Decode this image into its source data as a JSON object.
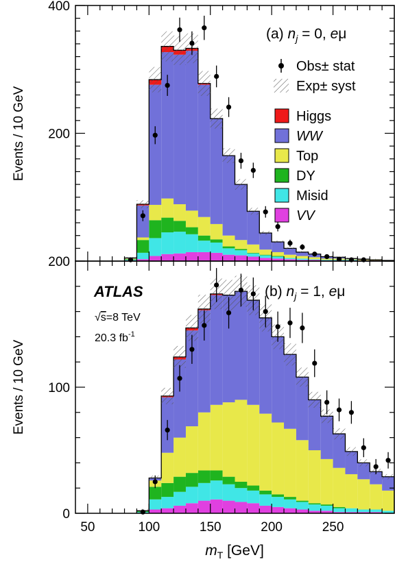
{
  "chart_data": [
    {
      "type": "histogram-stacked",
      "panel_label": "(a) ",
      "label_n": "n",
      "label_j": "j",
      "label_mid": " = 0, ",
      "label_e": "e",
      "label_mu": "μ",
      "ylabel": "Events / 10 GeV",
      "xlim": [
        40,
        300
      ],
      "ylim": [
        0,
        400
      ],
      "y_ticks": [
        {
          "value": 200,
          "label": "200"
        },
        {
          "value": 400,
          "label": "400"
        }
      ],
      "bins": [
        80,
        90,
        100,
        110,
        120,
        130,
        140,
        150,
        160,
        170,
        180,
        190,
        200,
        210,
        220,
        230,
        240,
        250,
        260,
        270,
        280,
        290
      ],
      "stack_order": [
        "VV",
        "Misid",
        "DY",
        "Top",
        "WW",
        "Higgs"
      ],
      "series": [
        {
          "name": "VV",
          "color": "#e040e0",
          "values": [
            1,
            3,
            8,
            11,
            12,
            14,
            14,
            13,
            10,
            9,
            7,
            5,
            4,
            3,
            2,
            2,
            1,
            1,
            1,
            1,
            1,
            1
          ]
        },
        {
          "name": "Misid",
          "color": "#40e6e6",
          "values": [
            1,
            10,
            28,
            34,
            34,
            28,
            18,
            16,
            10,
            8,
            5,
            4,
            3,
            2,
            2,
            1,
            1,
            1,
            1,
            0,
            0,
            0
          ]
        },
        {
          "name": "DY",
          "color": "#1fb41f",
          "values": [
            1,
            20,
            28,
            23,
            17,
            11,
            8,
            5,
            3,
            2,
            1,
            1,
            1,
            0,
            0,
            0,
            0,
            0,
            0,
            0,
            0,
            0
          ]
        },
        {
          "name": "Top",
          "color": "#e8e84a",
          "values": [
            1,
            4,
            24,
            30,
            26,
            26,
            29,
            24,
            17,
            14,
            13,
            8,
            6,
            5,
            4,
            3,
            2,
            2,
            1,
            1,
            1,
            0
          ]
        },
        {
          "name": "WW",
          "color": "#7171d9",
          "values": [
            1,
            50,
            188,
            229,
            234,
            250,
            207,
            165,
            125,
            87,
            52,
            26,
            16,
            10,
            6,
            5,
            3,
            2,
            1,
            1,
            0,
            0
          ]
        },
        {
          "name": "Higgs",
          "color": "#ef1a1a",
          "values": [
            0,
            2,
            8,
            9,
            7,
            4,
            2,
            0,
            0,
            0,
            0,
            0,
            0,
            0,
            0,
            0,
            0,
            0,
            0,
            0,
            0,
            0
          ]
        }
      ],
      "observed": {
        "x": [
          85,
          95,
          105,
          115,
          125,
          135,
          145,
          155,
          165,
          175,
          185,
          195,
          205,
          215,
          225,
          235,
          245,
          255,
          265,
          275
        ],
        "y": [
          2,
          71,
          197,
          275,
          362,
          341,
          365,
          289,
          241,
          157,
          142,
          77,
          54,
          28,
          22,
          11,
          7,
          3,
          2,
          2
        ],
        "err": [
          1.5,
          8.5,
          14,
          16.5,
          19,
          18.5,
          19,
          17,
          15.5,
          12.5,
          12,
          9,
          7.5,
          5.5,
          4.5,
          3.3,
          2.6,
          1.7,
          1.4,
          1.4
        ]
      },
      "legend": {
        "obs": "Obs± stat",
        "exp": "Exp± syst",
        "entries": [
          {
            "label": "Higgs",
            "color": "#ef1a1a",
            "italic": false
          },
          {
            "label": "WW",
            "color": "#7171d9",
            "italic": true
          },
          {
            "label": "Top",
            "color": "#e8e84a",
            "italic": false
          },
          {
            "label": "DY",
            "color": "#1fb41f",
            "italic": false
          },
          {
            "label": "Misid",
            "color": "#40e6e6",
            "italic": false
          },
          {
            "label": "VV",
            "color": "#e040e0",
            "italic": true
          }
        ]
      }
    },
    {
      "type": "histogram-stacked",
      "panel_label": "(b) ",
      "label_n": "n",
      "label_j": "j",
      "label_mid": " = 1, ",
      "label_e": "e",
      "label_mu": "μ",
      "ylabel": "Events / 10 GeV",
      "xlim": [
        40,
        300
      ],
      "ylim": [
        0,
        200
      ],
      "y_ticks": [
        {
          "value": 0,
          "label": "0"
        },
        {
          "value": 100,
          "label": "100"
        },
        {
          "value": 200,
          "label": "200"
        }
      ],
      "x_ticks": [
        {
          "value": 50,
          "label": "50"
        },
        {
          "value": 100,
          "label": "100"
        },
        {
          "value": 150,
          "label": "150"
        },
        {
          "value": 200,
          "label": "200"
        },
        {
          "value": 250,
          "label": "250"
        }
      ],
      "bins": [
        90,
        100,
        110,
        120,
        130,
        140,
        150,
        160,
        170,
        180,
        190,
        200,
        210,
        220,
        230,
        240,
        250,
        260,
        270,
        280,
        290
      ],
      "stack_order": [
        "VV",
        "Misid",
        "DY",
        "Top",
        "WW",
        "Higgs"
      ],
      "series": [
        {
          "name": "VV",
          "color": "#e040e0",
          "values": [
            0,
            3,
            4,
            6,
            8,
            10,
            11,
            10,
            9,
            8,
            6,
            5,
            4,
            3,
            2,
            2,
            1,
            1,
            1,
            1,
            0
          ]
        },
        {
          "name": "Misid",
          "color": "#40e6e6",
          "values": [
            1,
            8,
            9,
            11,
            13,
            14,
            15,
            13,
            11,
            10,
            9,
            8,
            7,
            6,
            5,
            4,
            3,
            3,
            2,
            2,
            2
          ]
        },
        {
          "name": "DY",
          "color": "#1fb41f",
          "values": [
            1,
            10,
            11,
            12,
            11,
            10,
            8,
            6,
            5,
            4,
            3,
            2,
            2,
            1,
            1,
            1,
            1,
            0,
            0,
            0,
            0
          ]
        },
        {
          "name": "Top",
          "color": "#e8e84a",
          "values": [
            0,
            5,
            24,
            31,
            37,
            46,
            52,
            59,
            65,
            64,
            61,
            57,
            54,
            48,
            42,
            36,
            31,
            27,
            24,
            20,
            16
          ]
        },
        {
          "name": "WW",
          "color": "#7171d9",
          "values": [
            0,
            2,
            44,
            62,
            76,
            81,
            87,
            85,
            86,
            83,
            76,
            68,
            59,
            50,
            40,
            34,
            27,
            18,
            13,
            10,
            11
          ]
        },
        {
          "name": "Higgs",
          "color": "#ef1a1a",
          "values": [
            0,
            0,
            1,
            2,
            2,
            1,
            1,
            0,
            0,
            0,
            0,
            0,
            0,
            0,
            0,
            0,
            0,
            0,
            0,
            0,
            0
          ]
        }
      ],
      "observed": {
        "x": [
          95,
          105,
          115,
          125,
          135,
          145,
          155,
          165,
          175,
          185,
          195,
          205,
          215,
          225,
          235,
          245,
          255,
          265,
          275,
          285,
          295
        ],
        "y": [
          1,
          25,
          66,
          107,
          130,
          149,
          181,
          159,
          177,
          174,
          160,
          148,
          151,
          147,
          119,
          88,
          82,
          80,
          52,
          37,
          42
        ],
        "err": [
          1,
          5,
          8,
          10.5,
          11.5,
          12,
          13.5,
          12.5,
          13,
          13,
          12.5,
          12,
          12,
          12,
          11,
          9.5,
          9,
          9,
          7.5,
          6,
          6.5
        ]
      },
      "annotation": {
        "experiment": "ATLAS",
        "energy_sqrt": "√",
        "energy_s": "s",
        "energy_value": "=8 TeV",
        "lumi": "20.3 fb",
        "lumi_sup": "-1"
      }
    }
  ],
  "xlabel": {
    "symbol": "m",
    "subscript": "T",
    "unit": " [GeV]"
  }
}
